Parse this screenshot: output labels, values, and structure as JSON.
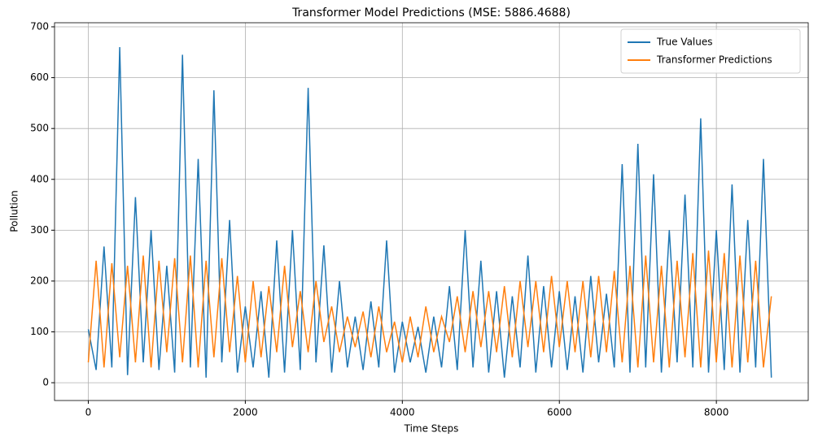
{
  "chart_data": {
    "type": "line",
    "title": "Transformer Model Predictions (MSE: 5886.4688)",
    "x_label": "Time Steps",
    "y_label": "Pollution",
    "x": [
      0,
      100,
      200,
      300,
      400,
      500,
      600,
      700,
      800,
      900,
      1000,
      1100,
      1200,
      1300,
      1400,
      1500,
      1600,
      1700,
      1800,
      1900,
      2000,
      2100,
      2200,
      2300,
      2400,
      2500,
      2600,
      2700,
      2800,
      2900,
      3000,
      3100,
      3200,
      3300,
      3400,
      3500,
      3600,
      3700,
      3800,
      3900,
      4000,
      4100,
      4200,
      4300,
      4400,
      4500,
      4600,
      4700,
      4800,
      4900,
      5000,
      5100,
      5200,
      5300,
      5400,
      5500,
      5600,
      5700,
      5800,
      5900,
      6000,
      6100,
      6200,
      6300,
      6400,
      6500,
      6600,
      6700,
      6800,
      6900,
      7000,
      7100,
      7200,
      7300,
      7400,
      7500,
      7600,
      7700,
      7800,
      7900,
      8000,
      8100,
      8200,
      8300,
      8400,
      8500,
      8600,
      8700
    ],
    "series": [
      {
        "name": "True Values",
        "color": "#1f77b4",
        "values": [
          105,
          25,
          268,
          30,
          660,
          15,
          365,
          40,
          300,
          25,
          230,
          20,
          645,
          30,
          440,
          10,
          575,
          40,
          320,
          20,
          150,
          30,
          180,
          10,
          280,
          20,
          300,
          25,
          580,
          40,
          270,
          20,
          200,
          30,
          130,
          25,
          160,
          30,
          280,
          20,
          120,
          40,
          110,
          20,
          130,
          30,
          190,
          25,
          300,
          30,
          240,
          20,
          180,
          10,
          170,
          30,
          250,
          20,
          190,
          30,
          180,
          25,
          170,
          20,
          210,
          40,
          175,
          30,
          430,
          20,
          470,
          30,
          410,
          20,
          300,
          40,
          370,
          30,
          520,
          20,
          300,
          25,
          390,
          20,
          320,
          30,
          440,
          10
        ]
      },
      {
        "name": "Transformer Predictions",
        "color": "#ff7f0e",
        "values": [
          40,
          240,
          30,
          235,
          50,
          230,
          40,
          250,
          30,
          240,
          60,
          245,
          40,
          250,
          30,
          240,
          50,
          245,
          60,
          210,
          40,
          200,
          50,
          190,
          60,
          230,
          70,
          180,
          60,
          200,
          80,
          150,
          60,
          130,
          70,
          140,
          50,
          150,
          60,
          120,
          40,
          130,
          50,
          150,
          60,
          130,
          80,
          170,
          60,
          180,
          70,
          180,
          60,
          190,
          50,
          200,
          70,
          200,
          60,
          210,
          70,
          200,
          60,
          200,
          50,
          210,
          60,
          220,
          40,
          230,
          30,
          250,
          40,
          230,
          30,
          240,
          50,
          255,
          30,
          260,
          40,
          255,
          30,
          250,
          40,
          240,
          30,
          170
        ]
      }
    ],
    "xlim": [
      -430,
      9170
    ],
    "ylim": [
      -35,
      708
    ],
    "xticks": [
      0,
      2000,
      4000,
      6000,
      8000
    ],
    "yticks": [
      0,
      100,
      200,
      300,
      400,
      500,
      600,
      700
    ],
    "grid": true,
    "legend": "upper right"
  }
}
